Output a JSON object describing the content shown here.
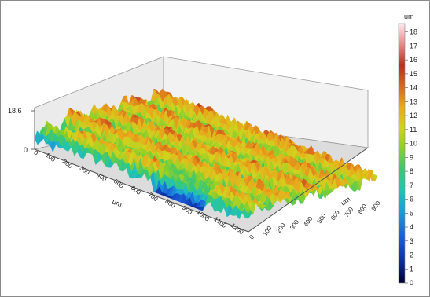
{
  "chart_data": {
    "type": "surface3d",
    "z_axis": {
      "ticks": [
        "18.6",
        "0"
      ],
      "range": [
        0,
        18.6
      ]
    },
    "x_axis": {
      "label": "um",
      "ticks": [
        "0",
        "100",
        "200",
        "300",
        "400",
        "500",
        "600",
        "700",
        "800",
        "900",
        "1000",
        "1100",
        "1200"
      ],
      "range": [
        0,
        1250
      ]
    },
    "y_axis": {
      "label": "um",
      "ticks": [
        "0",
        "100",
        "200",
        "300",
        "400",
        "500",
        "600",
        "700",
        "800",
        "900"
      ],
      "range": [
        0,
        950
      ]
    },
    "colorbar": {
      "unit": "um",
      "ticks": [
        "18",
        "17",
        "16",
        "15",
        "14",
        "13",
        "12",
        "11",
        "10",
        "9",
        "8",
        "7",
        "6",
        "5",
        "4",
        "3",
        "2",
        "1",
        "0"
      ],
      "range": [
        0,
        18.6
      ],
      "colors": [
        "#0a0a3a",
        "#0b2aa0",
        "#1a5fd8",
        "#1aa0d8",
        "#22c4b0",
        "#3cc870",
        "#8ccf2a",
        "#d2d21e",
        "#e8a81c",
        "#d8641c",
        "#b8301e",
        "#e88888",
        "#ffe8ee"
      ]
    },
    "surface_pattern": "parallel ridges along x, heights mostly 8-13 um, blue valleys near 2-5 um at front edge"
  }
}
